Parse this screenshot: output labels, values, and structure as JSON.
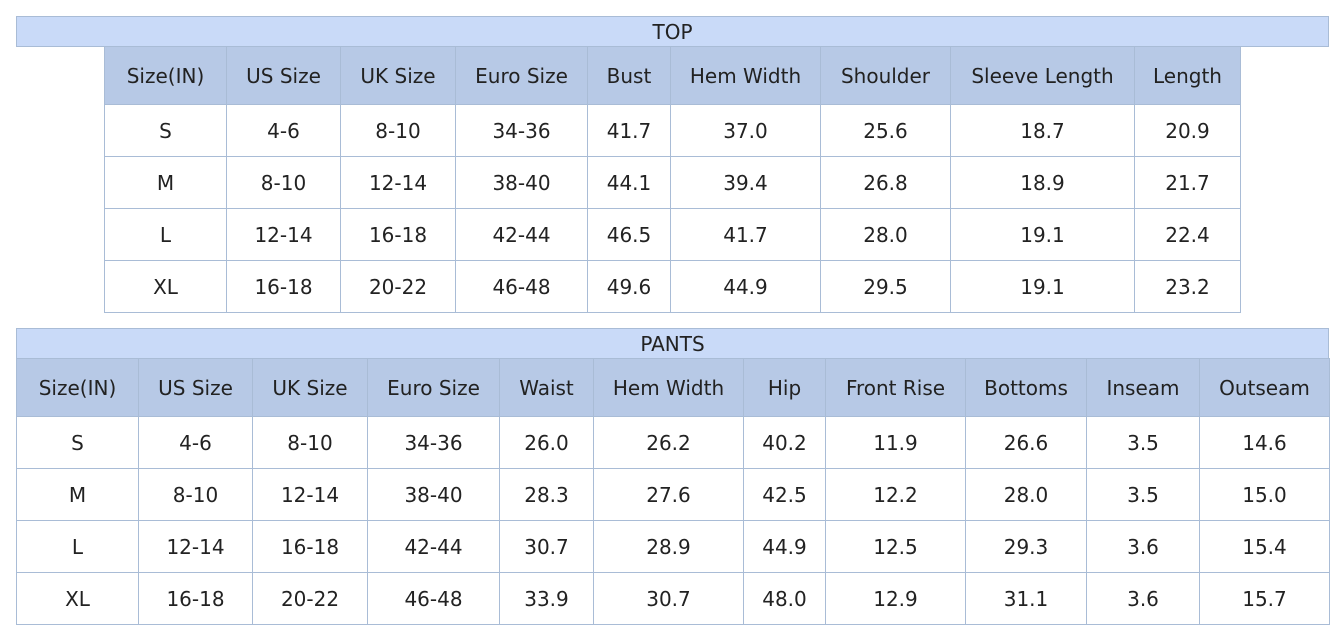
{
  "top": {
    "title": "TOP",
    "header": [
      "Size(IN)",
      "US Size",
      "UK Size",
      "Euro Size",
      "Bust",
      "Hem Width",
      "Shoulder",
      "Sleeve Length",
      "Length"
    ],
    "rows": [
      [
        "S",
        "4-6",
        "8-10",
        "34-36",
        "41.7",
        "37.0",
        "25.6",
        "18.7",
        "20.9"
      ],
      [
        "M",
        "8-10",
        "12-14",
        "38-40",
        "44.1",
        "39.4",
        "26.8",
        "18.9",
        "21.7"
      ],
      [
        "L",
        "12-14",
        "16-18",
        "42-44",
        "46.5",
        "41.7",
        "28.0",
        "19.1",
        "22.4"
      ],
      [
        "XL",
        "16-18",
        "20-22",
        "46-48",
        "49.6",
        "44.9",
        "29.5",
        "19.1",
        "23.2"
      ]
    ]
  },
  "pants": {
    "title": "PANTS",
    "header": [
      "Size(IN)",
      "US Size",
      "UK Size",
      "Euro Size",
      "Waist",
      "Hem Width",
      "Hip",
      "Front Rise",
      "Bottoms",
      "Inseam",
      "Outseam"
    ],
    "rows": [
      [
        "S",
        "4-6",
        "8-10",
        "34-36",
        "26.0",
        "26.2",
        "40.2",
        "11.9",
        "26.6",
        "3.5",
        "14.6"
      ],
      [
        "M",
        "8-10",
        "12-14",
        "38-40",
        "28.3",
        "27.6",
        "42.5",
        "12.2",
        "28.0",
        "3.5",
        "15.0"
      ],
      [
        "L",
        "12-14",
        "16-18",
        "42-44",
        "30.7",
        "28.9",
        "44.9",
        "12.5",
        "29.3",
        "3.6",
        "15.4"
      ],
      [
        "XL",
        "16-18",
        "20-22",
        "46-48",
        "33.9",
        "30.7",
        "48.0",
        "12.9",
        "31.1",
        "3.6",
        "15.7"
      ]
    ]
  }
}
